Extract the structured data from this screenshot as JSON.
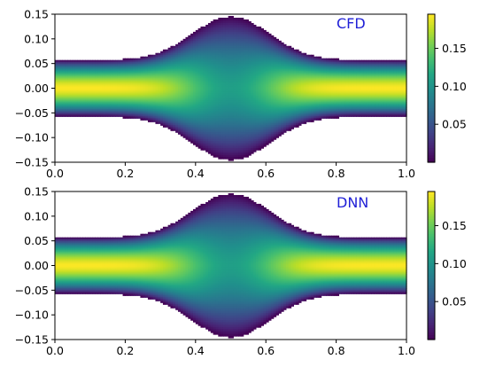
{
  "figure": {
    "colormap": "viridis",
    "colors": {
      "annotation": "#1f1fd6",
      "background": "#ffffff",
      "outside": "#ffffff"
    }
  },
  "chart_data": [
    {
      "type": "heatmap",
      "annotation": "CFD",
      "xlim": [
        0,
        1
      ],
      "ylim": [
        -0.15,
        0.15
      ],
      "x_ticks": [
        "0.0",
        "0.2",
        "0.4",
        "0.6",
        "0.8",
        "1.0"
      ],
      "y_ticks": [
        "0.15",
        "0.10",
        "0.05",
        "0.00",
        "−0.05",
        "−0.10",
        "−0.15"
      ],
      "colorbar": {
        "min": 0.0,
        "max": 0.195,
        "ticks": [
          "0.05",
          "0.10",
          "0.15"
        ],
        "tick_values": [
          0.05,
          0.1,
          0.15
        ]
      },
      "channel": {
        "half_width_ends": 0.057,
        "half_width_peak": 0.145,
        "bump_center": 0.5,
        "bump_sigma": 0.11
      },
      "field": {
        "max_value": 0.195,
        "center_dip_value": 0.11,
        "fill": "between top and bottom walls"
      }
    },
    {
      "type": "heatmap",
      "annotation": "DNN",
      "xlim": [
        0,
        1
      ],
      "ylim": [
        -0.15,
        0.15
      ],
      "x_ticks": [
        "0.0",
        "0.2",
        "0.4",
        "0.6",
        "0.8",
        "1.0"
      ],
      "y_ticks": [
        "0.15",
        "0.10",
        "0.05",
        "0.00",
        "−0.05",
        "−0.10",
        "−0.15"
      ],
      "colorbar": {
        "min": 0.0,
        "max": 0.195,
        "ticks": [
          "0.05",
          "0.10",
          "0.15"
        ],
        "tick_values": [
          0.05,
          0.1,
          0.15
        ]
      },
      "channel": {
        "half_width_ends": 0.057,
        "half_width_peak": 0.145,
        "bump_center": 0.5,
        "bump_sigma": 0.11
      },
      "field": {
        "max_value": 0.195,
        "center_dip_value": 0.11,
        "fill": "between top and bottom walls"
      }
    }
  ]
}
